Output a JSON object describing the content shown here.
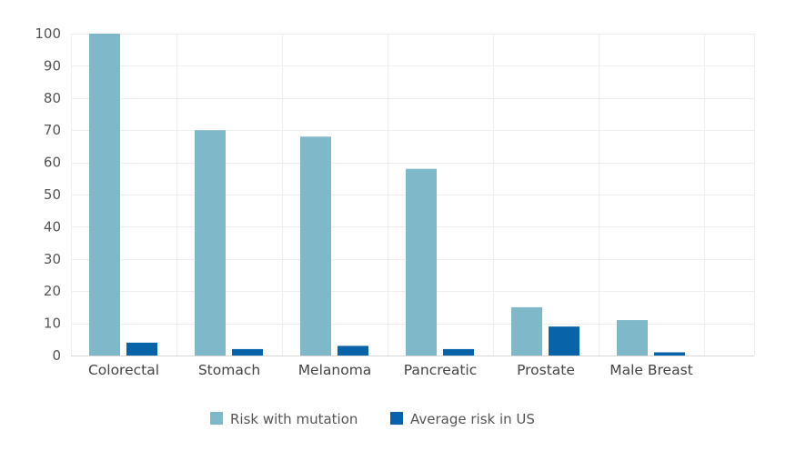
{
  "chart_data": {
    "type": "bar",
    "title": "",
    "xlabel": "",
    "ylabel": "",
    "categories": [
      "Colorectal",
      "Stomach",
      "Melanoma",
      "Pancreatic",
      "Prostate",
      "Male Breast"
    ],
    "series": [
      {
        "name": "Risk with mutation",
        "color": "#7fb8c8",
        "values": [
          100,
          70,
          68,
          58,
          15,
          11
        ]
      },
      {
        "name": "Average risk in US",
        "color": "#0963a8",
        "values": [
          4,
          2,
          3,
          2,
          9,
          1
        ]
      }
    ],
    "ylim": [
      0,
      100
    ],
    "yticks": [
      0,
      10,
      20,
      30,
      40,
      50,
      60,
      70,
      80,
      90,
      100
    ],
    "grid": true,
    "legend_position": "bottom-center"
  }
}
